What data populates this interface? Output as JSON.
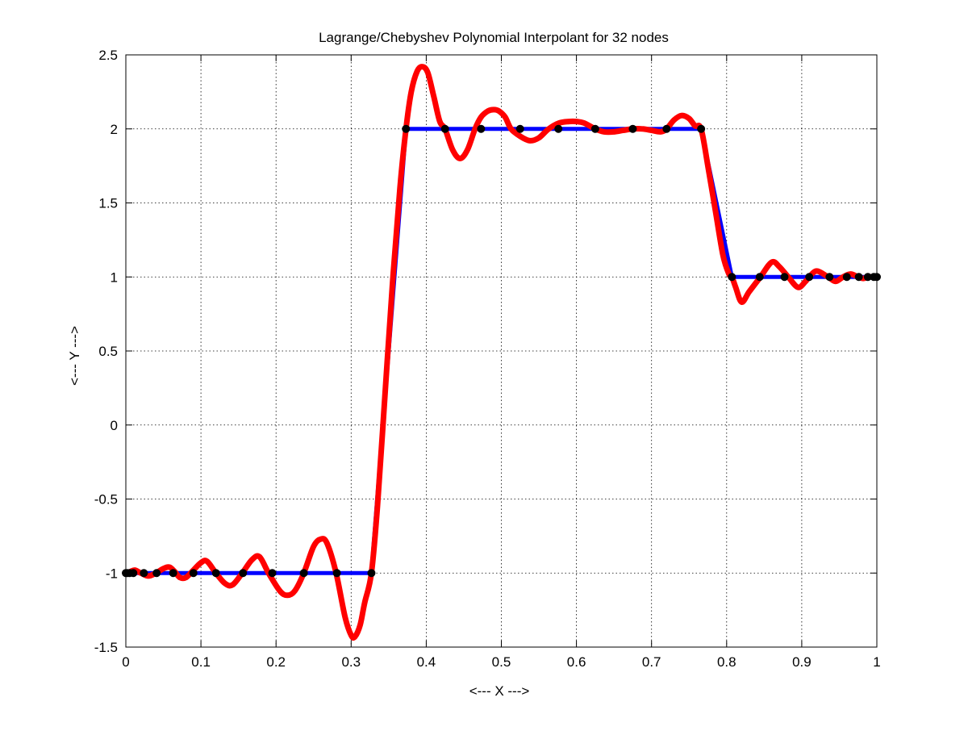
{
  "chart_data": {
    "type": "line",
    "title": "Lagrange/Chebyshev Polynomial Interpolant for 32 nodes",
    "xlabel": "<--- X --->",
    "ylabel": "<--- Y --->",
    "xlim": [
      0,
      1
    ],
    "ylim": [
      -1.5,
      2.5
    ],
    "grid": true,
    "legend": "none",
    "x_ticks": [
      "0",
      "0.1",
      "0.2",
      "0.3",
      "0.4",
      "0.5",
      "0.6",
      "0.7",
      "0.8",
      "0.9",
      "1"
    ],
    "y_ticks": [
      "-1.5",
      "-1",
      "-0.5",
      "0",
      "0.5",
      "1",
      "1.5",
      "2",
      "2.5"
    ],
    "series": [
      {
        "color": "#0000ff",
        "x": [
          0,
          0.327,
          0.373,
          0.766,
          0.807,
          1
        ],
        "y": [
          -1,
          -1,
          2,
          2,
          1,
          1
        ]
      },
      {
        "color": "#ff0000",
        "x": [
          0.0,
          0.006,
          0.012,
          0.02,
          0.03,
          0.04,
          0.05,
          0.058,
          0.065,
          0.072,
          0.08,
          0.09,
          0.1,
          0.108,
          0.12,
          0.132,
          0.142,
          0.155,
          0.168,
          0.178,
          0.19,
          0.205,
          0.215,
          0.225,
          0.237,
          0.25,
          0.26,
          0.268,
          0.28,
          0.292,
          0.3,
          0.305,
          0.312,
          0.318,
          0.327,
          0.335,
          0.345,
          0.355,
          0.365,
          0.373,
          0.38,
          0.388,
          0.395,
          0.402,
          0.41,
          0.418,
          0.425,
          0.435,
          0.445,
          0.455,
          0.465,
          0.473,
          0.482,
          0.49,
          0.497,
          0.505,
          0.513,
          0.525,
          0.538,
          0.55,
          0.563,
          0.577,
          0.59,
          0.6,
          0.61,
          0.625,
          0.637,
          0.65,
          0.662,
          0.675,
          0.688,
          0.7,
          0.712,
          0.72,
          0.73,
          0.74,
          0.75,
          0.758,
          0.766,
          0.775,
          0.785,
          0.795,
          0.803,
          0.807,
          0.812,
          0.82,
          0.83,
          0.845,
          0.86,
          0.87,
          0.882,
          0.895,
          0.905,
          0.91,
          0.92,
          0.935,
          0.945,
          0.955,
          0.965,
          0.975,
          0.982,
          0.99,
          1.0
        ],
        "y": [
          -1.0,
          -0.99,
          -0.98,
          -1.0,
          -1.02,
          -1.0,
          -0.97,
          -0.96,
          -0.99,
          -1.03,
          -1.03,
          -0.98,
          -0.93,
          -0.92,
          -1.0,
          -1.07,
          -1.08,
          -1.0,
          -0.91,
          -0.89,
          -1.0,
          -1.12,
          -1.15,
          -1.12,
          -1.0,
          -0.82,
          -0.77,
          -0.8,
          -1.0,
          -1.3,
          -1.42,
          -1.43,
          -1.35,
          -1.2,
          -1.0,
          -0.55,
          0.2,
          0.95,
          1.6,
          2.0,
          2.25,
          2.39,
          2.42,
          2.38,
          2.22,
          2.05,
          2.0,
          1.86,
          1.8,
          1.86,
          2.0,
          2.08,
          2.12,
          2.13,
          2.12,
          2.08,
          2.0,
          1.95,
          1.92,
          1.94,
          2.0,
          2.04,
          2.05,
          2.05,
          2.04,
          2.0,
          1.98,
          1.98,
          1.99,
          2.0,
          2.0,
          1.99,
          1.98,
          2.0,
          2.06,
          2.09,
          2.07,
          2.02,
          2.0,
          1.75,
          1.45,
          1.15,
          1.02,
          1.0,
          0.93,
          0.83,
          0.9,
          1.0,
          1.1,
          1.07,
          1.0,
          0.93,
          0.97,
          1.0,
          1.04,
          1.0,
          0.97,
          1.0,
          1.02,
          1.0,
          0.99,
          1.0,
          1.0
        ]
      },
      {
        "color": "#000000",
        "marker": "dot",
        "x": [
          0,
          0.002,
          0.005,
          0.01,
          0.024,
          0.041,
          0.063,
          0.09,
          0.12,
          0.156,
          0.195,
          0.237,
          0.281,
          0.327,
          0.373,
          0.425,
          0.473,
          0.525,
          0.576,
          0.625,
          0.675,
          0.72,
          0.766,
          0.807,
          0.844,
          0.877,
          0.91,
          0.937,
          0.96,
          0.976,
          0.988,
          0.996,
          1.0
        ],
        "y": [
          -1,
          -1,
          -1,
          -1,
          -1,
          -1,
          -1,
          -1,
          -1,
          -1,
          -1,
          -1,
          -1,
          -1,
          2,
          2,
          2,
          2,
          2,
          2,
          2,
          2,
          2,
          1,
          1,
          1,
          1,
          1,
          1,
          1,
          1,
          1,
          1
        ]
      }
    ]
  }
}
